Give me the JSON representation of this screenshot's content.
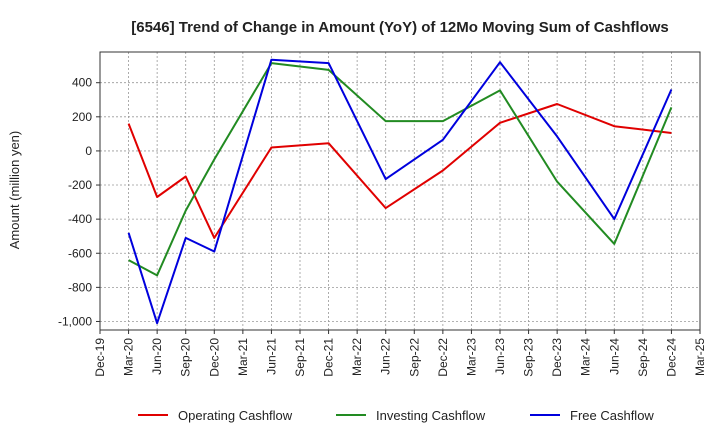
{
  "chart_data": {
    "type": "line",
    "title": "[6546]  Trend of Change in Amount (YoY) of 12Mo Moving Sum of Cashflows",
    "xlabel": "",
    "ylabel": "Amount (million yen)",
    "ylim": [
      -1050,
      580
    ],
    "yticks": [
      400,
      200,
      0,
      -200,
      -400,
      -600,
      -800,
      -1000
    ],
    "ytick_labels": [
      "400",
      "200",
      "0",
      "-200",
      "-400",
      "-600",
      "-800",
      "-1,000"
    ],
    "categories": [
      "Dec-19",
      "Mar-20",
      "Jun-20",
      "Sep-20",
      "Dec-20",
      "Mar-21",
      "Jun-21",
      "Sep-21",
      "Dec-21",
      "Mar-22",
      "Jun-22",
      "Sep-22",
      "Dec-22",
      "Mar-23",
      "Jun-23",
      "Sep-23",
      "Dec-23",
      "Mar-24",
      "Jun-24",
      "Sep-24",
      "Dec-24",
      "Mar-25"
    ],
    "grid": true,
    "legend_position": "bottom",
    "series": [
      {
        "name": "Operating Cashflow",
        "color": "#e00000",
        "values": [
          null,
          160,
          -270,
          -150,
          -510,
          null,
          20,
          null,
          45,
          null,
          -335,
          null,
          -115,
          null,
          165,
          null,
          275,
          null,
          145,
          null,
          105,
          null
        ]
      },
      {
        "name": "Investing Cashflow",
        "color": "#228b22",
        "values": [
          null,
          -640,
          -730,
          -350,
          -50,
          null,
          515,
          null,
          475,
          null,
          175,
          null,
          175,
          null,
          355,
          null,
          -180,
          null,
          -545,
          null,
          255,
          null
        ]
      },
      {
        "name": "Free Cashflow",
        "color": "#0000dd",
        "values": [
          null,
          -480,
          -1010,
          -510,
          -590,
          null,
          535,
          null,
          515,
          null,
          -165,
          null,
          65,
          null,
          520,
          null,
          85,
          null,
          -400,
          null,
          360,
          null
        ]
      }
    ]
  }
}
